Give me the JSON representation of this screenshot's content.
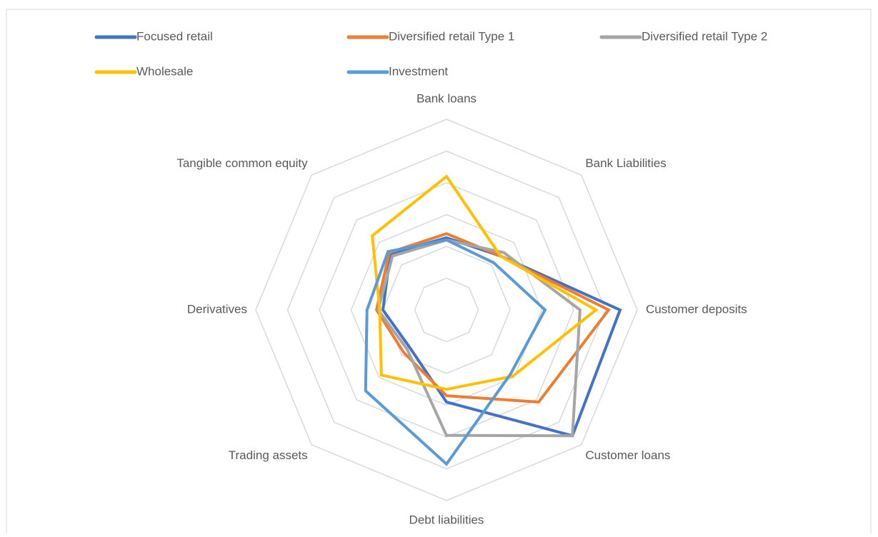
{
  "chart_data": {
    "type": "radar",
    "categories": [
      "Bank loans",
      "Bank Liabilities",
      "Customer deposits",
      "Customer loans",
      "Debt liabilities",
      "Trading assets",
      "Derivatives",
      "Tangible common equity"
    ],
    "rlim": [
      0,
      6
    ],
    "rticks": [
      1,
      2,
      3,
      4,
      5,
      6
    ],
    "grid": true,
    "legend": "top",
    "series": [
      {
        "name": "Focused retail",
        "color": "#4472c4",
        "values": [
          2.27,
          2.4,
          5.46,
          5.6,
          2.9,
          1.65,
          2.0,
          2.5
        ]
      },
      {
        "name": "Diversified retail Type 1",
        "color": "#ed7d31",
        "values": [
          2.4,
          2.4,
          5.1,
          4.1,
          2.7,
          1.9,
          2.2,
          2.55
        ]
      },
      {
        "name": "Diversified retail Type 2",
        "color": "#a5a5a5",
        "values": [
          2.2,
          2.55,
          4.2,
          5.6,
          3.95,
          1.75,
          2.15,
          2.4
        ]
      },
      {
        "name": "Wholesale",
        "color": "#ffc000",
        "values": [
          4.2,
          2.4,
          4.7,
          2.95,
          2.5,
          2.9,
          2.1,
          3.3
        ]
      },
      {
        "name": "Investment",
        "color": "#5b9bd5",
        "values": [
          2.2,
          2.1,
          3.1,
          2.85,
          4.85,
          3.6,
          2.5,
          2.6
        ]
      }
    ]
  }
}
